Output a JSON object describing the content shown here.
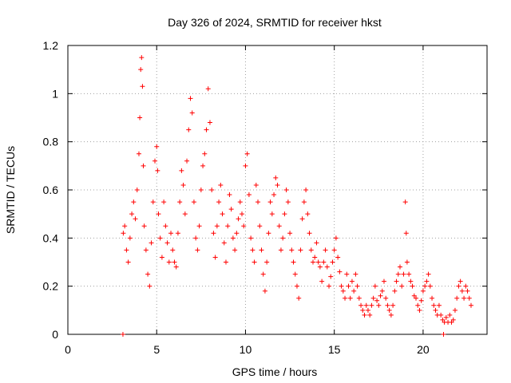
{
  "chart_data": {
    "type": "scatter",
    "title": "Day 326 of 2024, SRMTID for receiver hkst",
    "xlabel": "GPS time / hours",
    "ylabel": "SRMTID / TECUs",
    "xlim": [
      0,
      23.6
    ],
    "ylim": [
      0,
      1.2
    ],
    "xticks": [
      0,
      5,
      10,
      15,
      20
    ],
    "xtick_labels": [
      "0",
      "5",
      "10",
      "15",
      "20"
    ],
    "yticks": [
      0,
      0.2,
      0.4,
      0.6,
      0.8,
      1.0,
      1.2
    ],
    "ytick_labels": [
      "0",
      "0.2",
      "0.4",
      "0.6",
      "0.8",
      "1",
      "1.2"
    ],
    "grid": true,
    "marker": "+",
    "color": "#ff0000",
    "series": [
      {
        "name": "SRMTID",
        "x": [
          3.1,
          3.12,
          3.2,
          3.3,
          3.4,
          3.5,
          3.6,
          3.7,
          3.8,
          3.9,
          4.0,
          4.05,
          4.1,
          4.15,
          4.2,
          4.25,
          4.3,
          4.4,
          4.5,
          4.6,
          4.7,
          4.8,
          4.9,
          5.0,
          5.05,
          5.1,
          5.2,
          5.3,
          5.4,
          5.5,
          5.6,
          5.7,
          5.8,
          5.9,
          6.0,
          6.1,
          6.2,
          6.3,
          6.4,
          6.5,
          6.6,
          6.7,
          6.8,
          6.9,
          7.0,
          7.1,
          7.2,
          7.3,
          7.4,
          7.5,
          7.6,
          7.7,
          7.8,
          7.9,
          8.0,
          8.1,
          8.2,
          8.3,
          8.4,
          8.5,
          8.6,
          8.7,
          8.8,
          8.9,
          9.0,
          9.1,
          9.2,
          9.3,
          9.4,
          9.5,
          9.6,
          9.7,
          9.8,
          9.9,
          10.0,
          10.1,
          10.2,
          10.3,
          10.4,
          10.5,
          10.6,
          10.7,
          10.8,
          10.9,
          11.0,
          11.1,
          11.2,
          11.3,
          11.4,
          11.5,
          11.6,
          11.7,
          11.8,
          11.9,
          12.0,
          12.1,
          12.2,
          12.3,
          12.4,
          12.5,
          12.6,
          12.7,
          12.8,
          12.9,
          13.0,
          13.1,
          13.2,
          13.3,
          13.4,
          13.5,
          13.6,
          13.7,
          13.8,
          13.9,
          14.0,
          14.1,
          14.2,
          14.3,
          14.4,
          14.5,
          14.6,
          14.7,
          14.8,
          14.9,
          15.0,
          15.1,
          15.2,
          15.3,
          15.4,
          15.5,
          15.6,
          15.7,
          15.8,
          15.9,
          16.0,
          16.1,
          16.2,
          16.3,
          16.4,
          16.5,
          16.6,
          16.7,
          16.8,
          16.9,
          17.0,
          17.1,
          17.2,
          17.3,
          17.4,
          17.5,
          17.6,
          17.7,
          17.8,
          17.9,
          18.0,
          18.1,
          18.2,
          18.3,
          18.4,
          18.5,
          18.6,
          18.7,
          18.8,
          18.9,
          19.0,
          19.05,
          19.1,
          19.2,
          19.3,
          19.4,
          19.5,
          19.6,
          19.7,
          19.8,
          19.9,
          20.0,
          20.1,
          20.2,
          20.3,
          20.4,
          20.5,
          20.6,
          20.7,
          20.8,
          20.9,
          21.0,
          21.1,
          21.15,
          21.2,
          21.3,
          21.4,
          21.5,
          21.6,
          21.7,
          21.8,
          21.9,
          22.0,
          22.1,
          22.2,
          22.3,
          22.4,
          22.5,
          22.6,
          22.7
        ],
        "y": [
          0.0,
          0.42,
          0.45,
          0.35,
          0.3,
          0.4,
          0.5,
          0.55,
          0.48,
          0.6,
          0.75,
          0.9,
          1.1,
          1.15,
          1.03,
          0.7,
          0.45,
          0.35,
          0.25,
          0.2,
          0.38,
          0.55,
          0.72,
          0.78,
          0.68,
          0.5,
          0.4,
          0.32,
          0.55,
          0.45,
          0.38,
          0.3,
          0.42,
          0.35,
          0.3,
          0.28,
          0.42,
          0.55,
          0.68,
          0.62,
          0.5,
          0.72,
          0.85,
          0.98,
          0.92,
          0.55,
          0.4,
          0.35,
          0.45,
          0.6,
          0.7,
          0.75,
          0.85,
          1.02,
          0.88,
          0.6,
          0.42,
          0.32,
          0.45,
          0.55,
          0.62,
          0.5,
          0.38,
          0.3,
          0.45,
          0.58,
          0.52,
          0.4,
          0.35,
          0.42,
          0.48,
          0.55,
          0.5,
          0.45,
          0.7,
          0.75,
          0.58,
          0.4,
          0.35,
          0.3,
          0.62,
          0.55,
          0.45,
          0.35,
          0.25,
          0.18,
          0.3,
          0.42,
          0.55,
          0.5,
          0.58,
          0.65,
          0.62,
          0.45,
          0.35,
          0.4,
          0.5,
          0.6,
          0.55,
          0.42,
          0.35,
          0.3,
          0.25,
          0.2,
          0.15,
          0.35,
          0.48,
          0.55,
          0.6,
          0.5,
          0.42,
          0.35,
          0.3,
          0.32,
          0.38,
          0.3,
          0.28,
          0.22,
          0.3,
          0.35,
          0.28,
          0.2,
          0.24,
          0.3,
          0.35,
          0.4,
          0.32,
          0.26,
          0.2,
          0.18,
          0.15,
          0.25,
          0.2,
          0.15,
          0.22,
          0.18,
          0.25,
          0.2,
          0.15,
          0.12,
          0.1,
          0.08,
          0.12,
          0.1,
          0.08,
          0.12,
          0.15,
          0.2,
          0.14,
          0.12,
          0.16,
          0.18,
          0.22,
          0.15,
          0.12,
          0.1,
          0.08,
          0.12,
          0.18,
          0.22,
          0.25,
          0.28,
          0.2,
          0.25,
          0.55,
          0.42,
          0.3,
          0.25,
          0.22,
          0.2,
          0.16,
          0.15,
          0.12,
          0.1,
          0.14,
          0.18,
          0.2,
          0.22,
          0.25,
          0.2,
          0.15,
          0.12,
          0.1,
          0.08,
          0.12,
          0.08,
          0.06,
          0.0,
          0.05,
          0.07,
          0.05,
          0.08,
          0.05,
          0.06,
          0.1,
          0.15,
          0.2,
          0.22,
          0.18,
          0.15,
          0.2,
          0.18,
          0.15,
          0.12
        ]
      }
    ]
  }
}
